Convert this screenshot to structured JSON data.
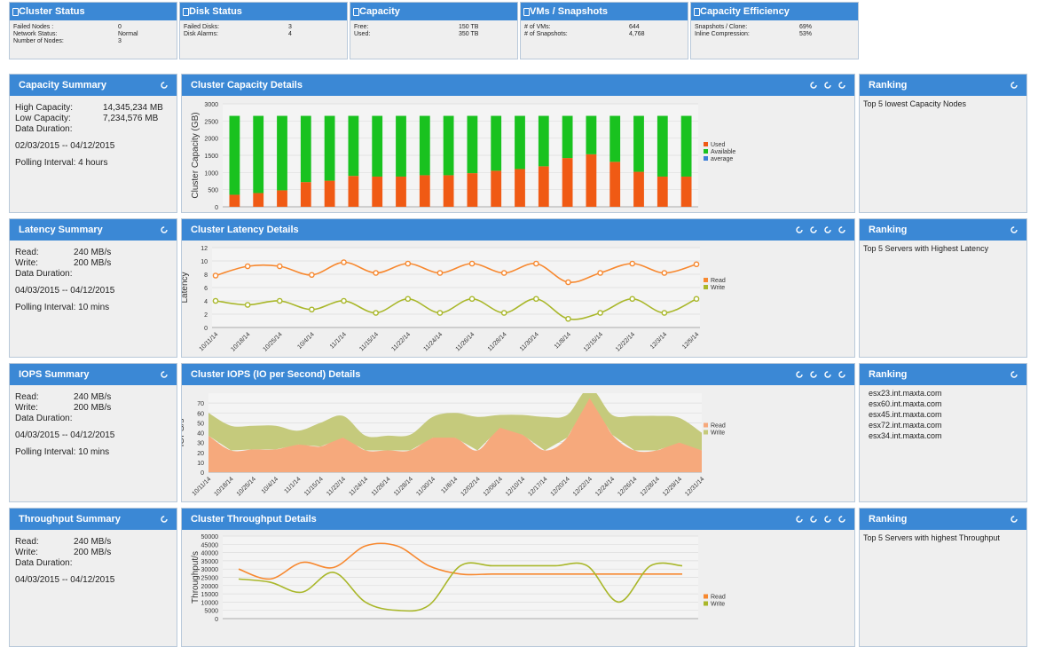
{
  "status_cards": [
    {
      "title": "Cluster Status",
      "rows": [
        [
          "Failed Nodes :",
          "0"
        ],
        [
          "Network Status:",
          "Normal"
        ],
        [
          "Number of Nodes:",
          "3"
        ]
      ]
    },
    {
      "title": "Disk Status",
      "rows": [
        [
          "Failed Disks:",
          "3"
        ],
        [
          "Disk Alarms:",
          "4"
        ]
      ]
    },
    {
      "title": "Capacity",
      "rows": [
        [
          "Free:",
          "150 TB"
        ],
        [
          "Used:",
          "350 TB"
        ]
      ]
    },
    {
      "title": "VMs / Snapshots",
      "rows": [
        [
          "# of VMs:",
          "644"
        ],
        [
          "# of Snapshots:",
          "4,768"
        ]
      ]
    },
    {
      "title": "Capacity Efficiency",
      "rows": [
        [
          "Snapshots / Clone:",
          "69%"
        ],
        [
          "Inline Compression:",
          "53%"
        ]
      ]
    }
  ],
  "summaries": [
    {
      "title": "Capacity Summary",
      "rows": [
        [
          "High Capacity:",
          "14,345,234 MB"
        ],
        [
          "Low Capacity:",
          "7,234,576 MB"
        ]
      ],
      "notes": [
        "Data Duration:",
        "02/03/2015 -- 04/12/2015",
        "Polling Interval: 4 hours"
      ]
    },
    {
      "title": "Latency Summary",
      "rows": [
        [
          "Read:",
          "240 MB/s"
        ],
        [
          "Write:",
          "200 MB/s"
        ]
      ],
      "notes": [
        "Data Duration:",
        "04/03/2015 -- 04/12/2015",
        "Polling Interval: 10 mins"
      ]
    },
    {
      "title": "IOPS Summary",
      "rows": [
        [
          "Read:",
          "240 MB/s"
        ],
        [
          "Write:",
          "200 MB/s"
        ]
      ],
      "notes": [
        "Data Duration:",
        "04/03/2015 -- 04/12/2015",
        "Polling Interval: 10 mins"
      ]
    },
    {
      "title": "Throughput Summary",
      "rows": [
        [
          "Read:",
          "240 MB/s"
        ],
        [
          "Write:",
          "200 MB/s"
        ]
      ],
      "notes": [
        "Data Duration:",
        "04/03/2015 -- 04/12/2015"
      ]
    }
  ],
  "rankings": [
    {
      "title": "Ranking",
      "text": "Top 5 lowest Capacity Nodes"
    },
    {
      "title": "Ranking",
      "text": "Top 5 Servers with Highest Latency"
    },
    {
      "title": "Ranking",
      "items": [
        "esx23.int.maxta.com",
        "esx60.int.maxta.com",
        "esx45.int.maxta.com",
        "esx72.int.maxta.com",
        "esx34.int.maxta.com"
      ]
    },
    {
      "title": "Ranking",
      "text": "Top 5 Servers with highest Throughput"
    }
  ],
  "chart_data": [
    {
      "type": "bar",
      "title": "Cluster Capacity Details",
      "y_label": "Cluster Capacity (GB)",
      "stacked": true,
      "grid": true,
      "ylim": [
        0,
        3000
      ],
      "yticks": [
        0,
        500,
        1000,
        1500,
        2000,
        2500,
        3000
      ],
      "series": [
        {
          "name": "Used",
          "color": "#f05a14",
          "values": [
            350,
            400,
            480,
            720,
            760,
            900,
            880,
            880,
            920,
            920,
            980,
            1050,
            1100,
            1180,
            1420,
            1530,
            1310,
            1020,
            880,
            880
          ]
        },
        {
          "name": "Available",
          "color": "#19c21f",
          "values": [
            2300,
            2250,
            2170,
            1930,
            1890,
            1750,
            1770,
            1770,
            1730,
            1730,
            1670,
            1600,
            1550,
            1470,
            1230,
            1120,
            1340,
            1630,
            1770,
            1770
          ]
        },
        {
          "name": "average",
          "color": "#3d7fd6",
          "values": [
            null,
            null,
            null,
            null,
            null,
            null,
            null,
            null,
            null,
            null,
            null,
            null,
            null,
            null,
            null,
            null,
            null,
            null,
            null,
            null
          ]
        }
      ]
    },
    {
      "type": "line",
      "title": "Cluster Latency Details",
      "y_label": "Latency",
      "grid": true,
      "categories": [
        "10/11/14",
        "10/18/14",
        "10/25/14",
        "10/4/14",
        "11/1/14",
        "11/15/14",
        "11/22/14",
        "11/24/14",
        "11/26/14",
        "11/28/14",
        "11/30/14",
        "11/8/14",
        "12/15/14",
        "12/22/14",
        "12/3/14",
        "12/5/14"
      ],
      "ylim": [
        0,
        12
      ],
      "yticks": [
        0,
        2,
        4,
        6,
        8,
        10,
        12
      ],
      "series": [
        {
          "name": "Read",
          "color": "#f7882f",
          "values": [
            7.8,
            9.2,
            9.2,
            7.9,
            9.8,
            8.2,
            9.6,
            8.2,
            9.6,
            8.2,
            9.6,
            6.8,
            8.2,
            9.6,
            8.2,
            9.5
          ]
        },
        {
          "name": "Write",
          "color": "#a9b72a",
          "values": [
            4,
            3.4,
            4,
            2.7,
            4,
            2.2,
            4.3,
            2.2,
            4.3,
            2.2,
            4.3,
            1.3,
            2.2,
            4.3,
            2.2,
            4.3
          ]
        }
      ]
    },
    {
      "type": "area",
      "title": "Cluster IOPS (IO per Second) Details",
      "y_label": "IOPS/s",
      "stacked": true,
      "grid": true,
      "categories": [
        "10/11/14",
        "10/18/14",
        "10/25/14",
        "10/4/14",
        "11/1/14",
        "11/15/14",
        "11/22/14",
        "11/24/14",
        "11/26/14",
        "11/28/14",
        "11/30/14",
        "11/8/14",
        "12/02/14",
        "12/06/14",
        "12/10/14",
        "12/17/14",
        "12/20/14",
        "12/22/14",
        "12/24/14",
        "12/26/14",
        "12/28/14",
        "12/29/14",
        "12/31/14"
      ],
      "ylim": [
        0,
        80
      ],
      "yticks": [
        0,
        10,
        20,
        30,
        40,
        50,
        60,
        70
      ],
      "series": [
        {
          "name": "Read",
          "color": "#f6a97c",
          "values": [
            37,
            22,
            23,
            23,
            28,
            26,
            35,
            22,
            22,
            22,
            35,
            35,
            22,
            45,
            38,
            22,
            35,
            75,
            38,
            22,
            22,
            30,
            22
          ]
        },
        {
          "name": "Write",
          "color": "#c5ca7c",
          "values": [
            23,
            25,
            24,
            24,
            14,
            24,
            22,
            15,
            15,
            16,
            21,
            25,
            34,
            13,
            20,
            34,
            23,
            10,
            20,
            35,
            35,
            25,
            18
          ]
        }
      ]
    },
    {
      "type": "line",
      "title": "Cluster Throughput Details",
      "y_label": "Throughput/s",
      "grid": true,
      "markers": false,
      "ylim": [
        0,
        50000
      ],
      "yticks": [
        0,
        5000,
        10000,
        15000,
        20000,
        25000,
        30000,
        35000,
        40000,
        45000,
        50000
      ],
      "series": [
        {
          "name": "Read",
          "color": "#f7882f",
          "values": [
            30000,
            24000,
            34000,
            31000,
            44000,
            44000,
            32000,
            27000,
            27000,
            27000,
            27000,
            27000,
            27000,
            27000,
            27000
          ]
        },
        {
          "name": "Write",
          "color": "#a9b72a",
          "values": [
            24000,
            22000,
            16000,
            28000,
            10000,
            5000,
            8000,
            32000,
            32000,
            32000,
            32000,
            32000,
            10000,
            32000,
            32000
          ]
        }
      ]
    }
  ]
}
